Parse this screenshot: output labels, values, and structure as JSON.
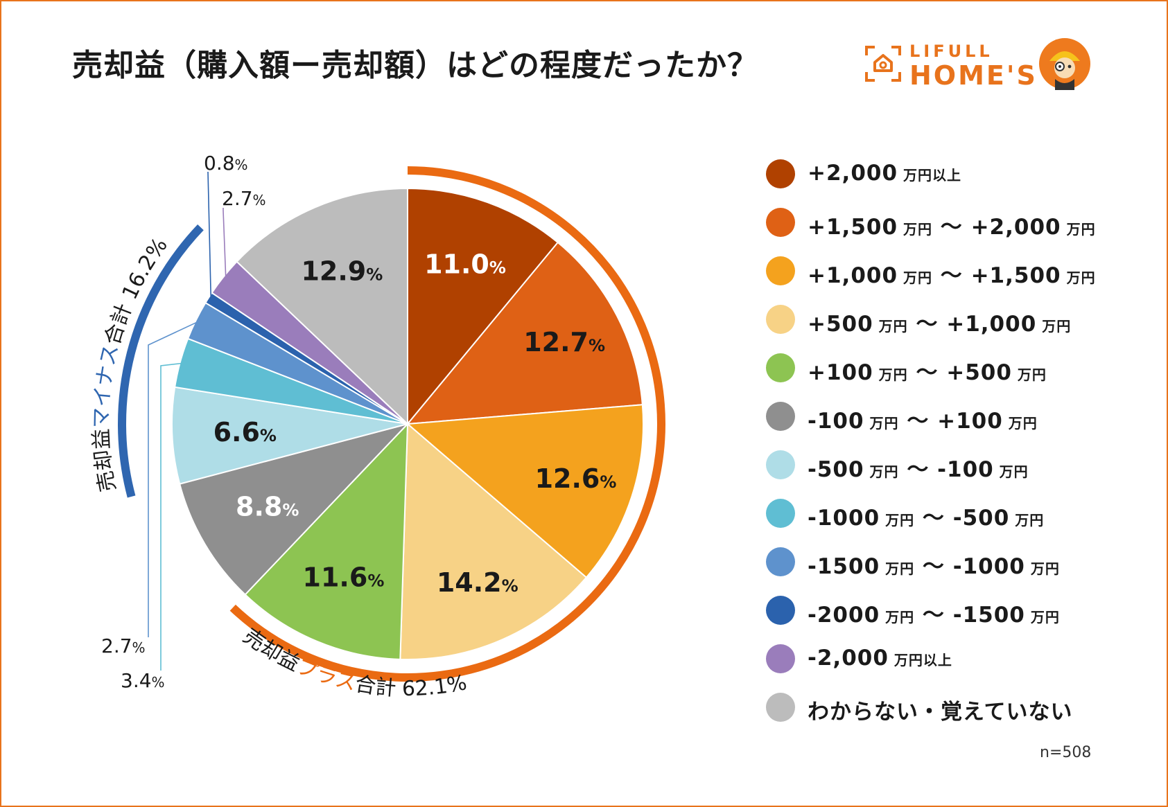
{
  "title": "売却益（購入額ー売却額）はどの程度だったか？",
  "logo": {
    "top": "LIFULL",
    "main": "HOME'S",
    "house_icon": "house-icon",
    "mascot_icon": "mascot-icon"
  },
  "sample_size": "n=508",
  "colors": {
    "frame": "#e8731c",
    "plus_arc": "#ea6a12",
    "minus_arc": "#2f66b0"
  },
  "chart_data": {
    "type": "pie",
    "title": "売却益（購入額ー売却額）はどの程度だったか？",
    "unit": "%",
    "slices": [
      {
        "label": "+2,000 万円以上",
        "value": 11.0,
        "display": "11.0",
        "color": "#b04100"
      },
      {
        "label": "+1,500 万円 ～ +2,000 万円",
        "value": 12.7,
        "display": "12.7",
        "color": "#df6115"
      },
      {
        "label": "+1,000 万円 ～ +1,500 万円",
        "value": 12.6,
        "display": "12.6",
        "color": "#f4a21e"
      },
      {
        "label": "+500 万円 ～ +1,000 万円",
        "value": 14.2,
        "display": "14.2",
        "color": "#f7d286"
      },
      {
        "label": "+100 万円 ～ +500 万円",
        "value": 11.6,
        "display": "11.6",
        "color": "#8dc452"
      },
      {
        "label": "-100 万円 ～ +100 万円",
        "value": 8.8,
        "display": "8.8",
        "color": "#8f8f8f"
      },
      {
        "label": "-500 万円 ～ -100 万円",
        "value": 6.6,
        "display": "6.6",
        "color": "#afdde7"
      },
      {
        "label": "-1000 万円 ～ -500 万円",
        "value": 3.4,
        "display": "3.4",
        "color": "#5fbed3"
      },
      {
        "label": "-1500 万円 ～ -1000 万円",
        "value": 2.7,
        "display": "2.7",
        "color": "#5e92cd"
      },
      {
        "label": "-2000 万円 ～ -1500 万円",
        "value": 0.8,
        "display": "0.8",
        "color": "#2b62ad"
      },
      {
        "label": "-2,000 万円以上",
        "value": 2.7,
        "display": "2.7",
        "color": "#9a7dbb"
      },
      {
        "label": "わからない・覚えていない",
        "value": 12.9,
        "display": "12.9",
        "color": "#bcbcbc"
      }
    ],
    "legend": [
      {
        "main": "+2,000",
        "sub": "万円以上",
        "main2": "",
        "sub2": ""
      },
      {
        "main": "+1,500",
        "sub": "万円",
        "main2": "～ +2,000",
        "sub2": "万円"
      },
      {
        "main": "+1,000",
        "sub": "万円",
        "main2": "～ +1,500",
        "sub2": "万円"
      },
      {
        "main": "+500",
        "sub": "万円",
        "main2": "～ +1,000",
        "sub2": "万円"
      },
      {
        "main": "+100",
        "sub": "万円",
        "main2": "～ +500",
        "sub2": "万円"
      },
      {
        "main": "-100",
        "sub": "万円",
        "main2": "～ +100",
        "sub2": "万円"
      },
      {
        "main": "-500",
        "sub": "万円",
        "main2": "～ -100",
        "sub2": "万円"
      },
      {
        "main": "-1000",
        "sub": "万円",
        "main2": "～ -500",
        "sub2": "万円"
      },
      {
        "main": "-1500",
        "sub": "万円",
        "main2": "～ -1000",
        "sub2": "万円"
      },
      {
        "main": "-2000",
        "sub": "万円",
        "main2": "～ -1500",
        "sub2": "万円"
      },
      {
        "main": "-2,000",
        "sub": "万円以上",
        "main2": "",
        "sub2": ""
      },
      {
        "main": "わからない・覚えていない",
        "sub": "",
        "main2": "",
        "sub2": ""
      }
    ],
    "group_plus": {
      "prefix": "売却益",
      "accent": "プラス",
      "suffix": "合計 62.1%"
    },
    "group_minus": {
      "prefix": "売却益",
      "accent": "マイナス",
      "suffix": "合計 16.2%"
    },
    "percent_sign": "%"
  }
}
